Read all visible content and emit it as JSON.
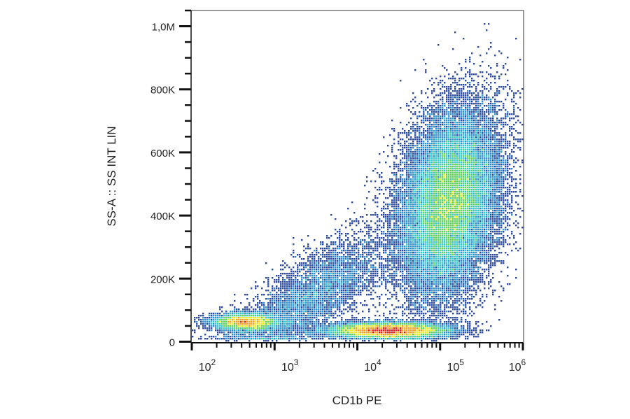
{
  "chart_data": {
    "type": "heatmap",
    "subtype": "flow cytometry density dot plot",
    "xlabel": "CD1b PE",
    "ylabel": "SS-A :: SS INT LIN",
    "x_scale": "log",
    "xlim": [
      100,
      1000000
    ],
    "x_ticks": [
      {
        "value": 100,
        "base": "10",
        "exp": "2"
      },
      {
        "value": 1000,
        "base": "10",
        "exp": "3"
      },
      {
        "value": 10000,
        "base": "10",
        "exp": "4"
      },
      {
        "value": 100000,
        "base": "10",
        "exp": "5"
      },
      {
        "value": 1000000,
        "base": "10",
        "exp": "6"
      }
    ],
    "y_scale": "linear",
    "ylim": [
      0,
      1050000
    ],
    "y_ticks": [
      {
        "value": 0,
        "label": "0"
      },
      {
        "value": 200000,
        "label": "200K"
      },
      {
        "value": 400000,
        "label": "400K"
      },
      {
        "value": 600000,
        "label": "600K"
      },
      {
        "value": 800000,
        "label": "800K"
      },
      {
        "value": 1000000,
        "label": "1,0M"
      }
    ],
    "colormap": [
      "#2c4b9e",
      "#2f8fd0",
      "#35c6c8",
      "#5fd05a",
      "#e8e82a",
      "#f5a020",
      "#e01e1e"
    ],
    "populations": [
      {
        "x_center": 450,
        "x_log_sd": 0.2,
        "y_center": 62000,
        "y_sd": 14000,
        "n": 5000
      },
      {
        "x_center": 24000,
        "x_log_sd": 0.35,
        "y_center": 35000,
        "y_sd": 12000,
        "n": 11000
      },
      {
        "x_center": 130000,
        "x_log_sd": 0.3,
        "y_center": 440000,
        "y_sd": 140000,
        "n": 30000
      },
      {
        "x_center": 3000,
        "x_log_sd": 0.45,
        "y_center": 150000,
        "y_sd": 110000,
        "n": 5000
      }
    ],
    "grid": false,
    "legend": "none"
  }
}
